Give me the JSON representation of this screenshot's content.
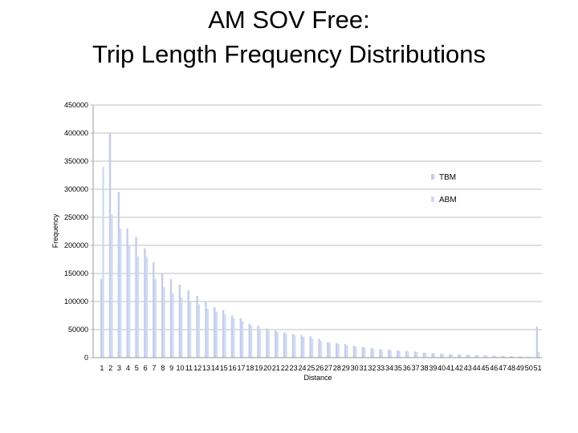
{
  "title_line1": "AM SOV Free:",
  "title_line2": "Trip Length Frequency Distributions",
  "chart_data": {
    "type": "bar",
    "xlabel": "Distance",
    "ylabel": "Frequency",
    "ylim": [
      0,
      450000
    ],
    "yticks": [
      0,
      50000,
      100000,
      150000,
      200000,
      250000,
      300000,
      350000,
      400000,
      450000
    ],
    "ytick_labels": [
      "0",
      "50000",
      "100000",
      "150000",
      "200000",
      "250000",
      "300000",
      "350000",
      "400000",
      "450000"
    ],
    "grid": true,
    "legend_position": "right",
    "categories": [
      "1",
      "2",
      "3",
      "4",
      "5",
      "6",
      "7",
      "8",
      "9",
      "10",
      "11",
      "12",
      "13",
      "14",
      "15",
      "16",
      "17",
      "18",
      "19",
      "20",
      "21",
      "22",
      "23",
      "24",
      "25",
      "26",
      "27",
      "28",
      "29",
      "30",
      "31",
      "32",
      "33",
      "34",
      "35",
      "36",
      "37",
      "38",
      "39",
      "40",
      "41",
      "42",
      "43",
      "44",
      "45",
      "46",
      "47",
      "48",
      "49",
      "50",
      "51"
    ],
    "series": [
      {
        "name": "TBM",
        "color": "#c6cde8",
        "values": [
          140000,
          400000,
          295000,
          230000,
          215000,
          195000,
          170000,
          150000,
          140000,
          130000,
          120000,
          110000,
          100000,
          90000,
          85000,
          75000,
          70000,
          60000,
          57000,
          52000,
          48000,
          45000,
          42000,
          40000,
          38000,
          33000,
          28000,
          26000,
          24000,
          21000,
          19000,
          17000,
          15000,
          14000,
          13000,
          12000,
          11000,
          9000,
          8000,
          7000,
          6000,
          5500,
          5000,
          4500,
          4000,
          3500,
          3000,
          2500,
          2000,
          1500,
          55000
        ]
      },
      {
        "name": "ABM",
        "color": "#cfdcf3",
        "values": [
          340000,
          255000,
          230000,
          200000,
          180000,
          180000,
          140000,
          125000,
          115000,
          108000,
          100000,
          95000,
          87000,
          82000,
          77000,
          70000,
          65000,
          57000,
          52000,
          48000,
          46000,
          43000,
          40000,
          37000,
          34000,
          30000,
          26000,
          24000,
          22000,
          20000,
          18000,
          16000,
          14000,
          13000,
          12000,
          11000,
          10000,
          8500,
          7500,
          6500,
          6000,
          5500,
          5000,
          4500,
          4000,
          3500,
          3000,
          2500,
          2000,
          1500,
          10000
        ]
      }
    ]
  }
}
